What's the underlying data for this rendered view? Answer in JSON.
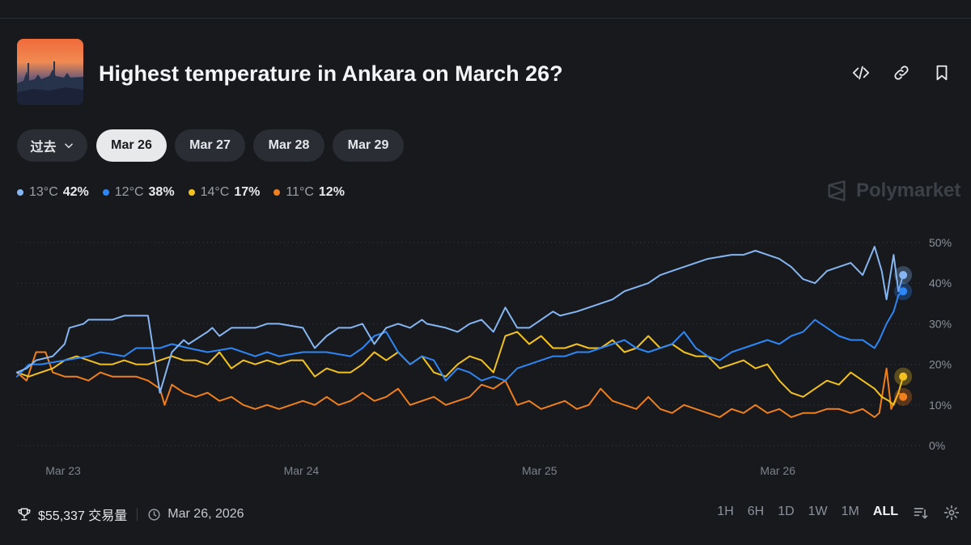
{
  "header": {
    "title": "Highest temperature in Ankara on March 26?",
    "image_alt": "Ankara skyline at sunset"
  },
  "date_tabs": {
    "past_label": "过去",
    "tabs": [
      "Mar 26",
      "Mar 27",
      "Mar 28",
      "Mar 29"
    ],
    "active": "Mar 26"
  },
  "legend": [
    {
      "label": "13°C",
      "pct": "42%",
      "color": "#86b6f2"
    },
    {
      "label": "12°C",
      "pct": "38%",
      "color": "#2e86f5"
    },
    {
      "label": "14°C",
      "pct": "17%",
      "color": "#f4c21f"
    },
    {
      "label": "11°C",
      "pct": "12%",
      "color": "#f07f1e"
    }
  ],
  "watermark": "Polymarket",
  "footer": {
    "volume": "$55,337 交易量",
    "date": "Mar 26, 2026"
  },
  "timeframes": {
    "options": [
      "1H",
      "6H",
      "1D",
      "1W",
      "1M",
      "ALL"
    ],
    "active": "ALL"
  },
  "chart_data": {
    "type": "line",
    "title": "",
    "xlabel": "",
    "ylabel": "",
    "x_ticks": [
      "Mar 23",
      "Mar 24",
      "Mar 25",
      "Mar 26"
    ],
    "y_ticks": [
      "0%",
      "10%",
      "20%",
      "30%",
      "40%",
      "50%"
    ],
    "ylim": [
      0,
      50
    ],
    "x_domain": [
      0,
      3.75
    ],
    "series": [
      {
        "name": "13°C",
        "color": "#86b6f2",
        "last": 42,
        "x": [
          0,
          0.04,
          0.08,
          0.15,
          0.2,
          0.22,
          0.28,
          0.3,
          0.34,
          0.4,
          0.45,
          0.55,
          0.6,
          0.65,
          0.7,
          0.72,
          0.8,
          0.82,
          0.85,
          0.9,
          0.95,
          1.0,
          1.05,
          1.1,
          1.2,
          1.25,
          1.3,
          1.35,
          1.4,
          1.45,
          1.5,
          1.55,
          1.6,
          1.65,
          1.7,
          1.72,
          1.8,
          1.85,
          1.9,
          1.95,
          2.0,
          2.05,
          2.1,
          2.15,
          2.2,
          2.25,
          2.28,
          2.35,
          2.4,
          2.45,
          2.5,
          2.55,
          2.6,
          2.65,
          2.7,
          2.75,
          2.8,
          2.85,
          2.9,
          3.0,
          3.05,
          3.1,
          3.15,
          3.2,
          3.25,
          3.3,
          3.35,
          3.4,
          3.45,
          3.5,
          3.55,
          3.6,
          3.63,
          3.65,
          3.68,
          3.7,
          3.72
        ],
        "y": [
          18,
          19,
          21,
          22,
          25,
          29,
          30,
          31,
          31,
          31,
          32,
          32,
          13,
          23,
          26,
          25,
          28,
          29,
          27,
          29,
          29,
          29,
          30,
          30,
          29,
          24,
          27,
          29,
          29,
          30,
          25,
          29,
          30,
          29,
          31,
          30,
          29,
          28,
          30,
          31,
          28,
          34,
          29,
          29,
          31,
          33,
          32,
          33,
          34,
          35,
          36,
          38,
          39,
          40,
          42,
          43,
          44,
          45,
          46,
          47,
          47,
          48,
          47,
          46,
          44,
          41,
          40,
          43,
          44,
          45,
          42,
          49,
          43,
          36,
          47,
          38,
          42
        ]
      },
      {
        "name": "12°C",
        "color": "#2e86f5",
        "last": 38,
        "x": [
          0,
          0.05,
          0.1,
          0.2,
          0.3,
          0.35,
          0.45,
          0.5,
          0.6,
          0.65,
          0.72,
          0.8,
          0.9,
          1.0,
          1.05,
          1.1,
          1.2,
          1.3,
          1.4,
          1.45,
          1.5,
          1.55,
          1.6,
          1.65,
          1.7,
          1.75,
          1.8,
          1.85,
          1.9,
          1.95,
          2.0,
          2.05,
          2.1,
          2.15,
          2.2,
          2.25,
          2.3,
          2.35,
          2.4,
          2.5,
          2.55,
          2.6,
          2.65,
          2.7,
          2.75,
          2.8,
          2.85,
          2.9,
          2.95,
          3.0,
          3.05,
          3.1,
          3.15,
          3.2,
          3.25,
          3.3,
          3.35,
          3.4,
          3.45,
          3.5,
          3.55,
          3.6,
          3.62,
          3.65,
          3.68,
          3.7,
          3.72
        ],
        "y": [
          17,
          20,
          20,
          21,
          22,
          23,
          22,
          24,
          24,
          25,
          24,
          23,
          24,
          22,
          23,
          22,
          23,
          23,
          22,
          24,
          27,
          28,
          23,
          20,
          22,
          21,
          16,
          19,
          18,
          16,
          17,
          16,
          19,
          20,
          21,
          22,
          22,
          23,
          23,
          25,
          26,
          24,
          23,
          24,
          25,
          28,
          24,
          22,
          21,
          23,
          24,
          25,
          26,
          25,
          27,
          28,
          31,
          29,
          27,
          26,
          26,
          24,
          26,
          30,
          33,
          37,
          38
        ]
      },
      {
        "name": "14°C",
        "color": "#f4c21f",
        "last": 17,
        "x": [
          0,
          0.05,
          0.1,
          0.15,
          0.2,
          0.25,
          0.3,
          0.35,
          0.4,
          0.45,
          0.5,
          0.55,
          0.6,
          0.65,
          0.7,
          0.75,
          0.8,
          0.85,
          0.9,
          0.95,
          1.0,
          1.05,
          1.1,
          1.15,
          1.2,
          1.25,
          1.3,
          1.35,
          1.4,
          1.45,
          1.5,
          1.55,
          1.6,
          1.65,
          1.7,
          1.75,
          1.8,
          1.85,
          1.9,
          1.95,
          2.0,
          2.05,
          2.1,
          2.15,
          2.2,
          2.25,
          2.3,
          2.35,
          2.4,
          2.45,
          2.5,
          2.55,
          2.6,
          2.65,
          2.7,
          2.75,
          2.8,
          2.85,
          2.9,
          2.95,
          3.0,
          3.05,
          3.1,
          3.15,
          3.2,
          3.25,
          3.3,
          3.35,
          3.4,
          3.45,
          3.5,
          3.55,
          3.6,
          3.63,
          3.66,
          3.68,
          3.7,
          3.72
        ],
        "y": [
          18,
          17,
          18,
          19,
          21,
          22,
          21,
          20,
          20,
          21,
          20,
          20,
          21,
          22,
          21,
          21,
          20,
          23,
          19,
          21,
          20,
          21,
          20,
          21,
          21,
          17,
          19,
          18,
          18,
          20,
          23,
          21,
          23,
          20,
          22,
          18,
          17,
          20,
          22,
          21,
          18,
          27,
          28,
          25,
          27,
          24,
          24,
          25,
          24,
          24,
          26,
          23,
          24,
          27,
          24,
          25,
          23,
          22,
          22,
          19,
          20,
          21,
          19,
          20,
          16,
          13,
          12,
          14,
          16,
          15,
          18,
          16,
          14,
          12,
          11,
          10,
          13,
          17
        ]
      },
      {
        "name": "11°C",
        "color": "#f07f1e",
        "last": 12,
        "x": [
          0,
          0.04,
          0.08,
          0.12,
          0.15,
          0.2,
          0.25,
          0.3,
          0.35,
          0.4,
          0.45,
          0.5,
          0.55,
          0.6,
          0.62,
          0.65,
          0.7,
          0.75,
          0.8,
          0.85,
          0.9,
          0.95,
          1.0,
          1.05,
          1.1,
          1.15,
          1.2,
          1.25,
          1.3,
          1.35,
          1.4,
          1.45,
          1.5,
          1.55,
          1.6,
          1.65,
          1.7,
          1.75,
          1.8,
          1.85,
          1.9,
          1.95,
          2.0,
          2.05,
          2.1,
          2.15,
          2.2,
          2.25,
          2.3,
          2.35,
          2.4,
          2.45,
          2.5,
          2.55,
          2.6,
          2.65,
          2.7,
          2.75,
          2.8,
          2.85,
          2.9,
          2.95,
          3.0,
          3.05,
          3.1,
          3.15,
          3.2,
          3.25,
          3.3,
          3.35,
          3.4,
          3.45,
          3.5,
          3.55,
          3.6,
          3.62,
          3.65,
          3.67,
          3.7,
          3.72
        ],
        "y": [
          18,
          16,
          23,
          23,
          18,
          17,
          17,
          16,
          18,
          17,
          17,
          17,
          16,
          14,
          10,
          15,
          13,
          12,
          13,
          11,
          12,
          10,
          9,
          10,
          9,
          10,
          11,
          10,
          12,
          10,
          11,
          13,
          11,
          12,
          14,
          10,
          11,
          12,
          10,
          11,
          12,
          15,
          14,
          16,
          10,
          11,
          9,
          10,
          11,
          9,
          10,
          14,
          11,
          10,
          9,
          12,
          9,
          8,
          10,
          9,
          8,
          7,
          9,
          8,
          10,
          8,
          9,
          7,
          8,
          8,
          9,
          9,
          8,
          9,
          7,
          8,
          19,
          9,
          13,
          12
        ]
      }
    ]
  }
}
